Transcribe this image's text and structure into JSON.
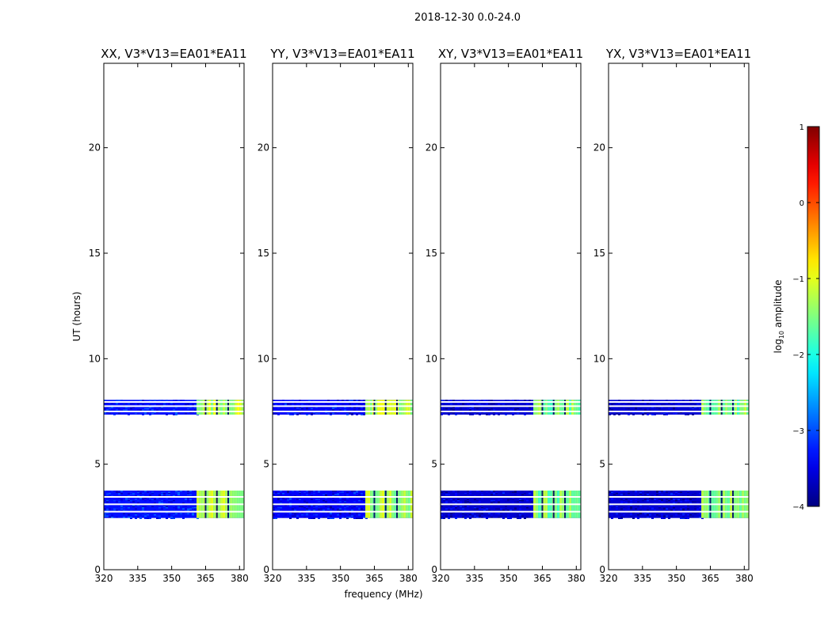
{
  "figure_title": "2018-12-30 0.0-24.0",
  "chart_data": {
    "type": "heatmap",
    "title": "2018-12-30 0.0-24.0",
    "xlabel": "frequency (MHz)",
    "ylabel": "UT (hours)",
    "xlim": [
      320,
      382
    ],
    "ylim": [
      0,
      24
    ],
    "xticks": [
      "320",
      "335",
      "350",
      "365",
      "380"
    ],
    "yticks": [
      "0",
      "5",
      "10",
      "15",
      "20"
    ],
    "panels": [
      {
        "title": "XX, V3*V13=EA01*EA11",
        "bands": [
          {
            "t0": 7.35,
            "t1": 8.05,
            "base": -3.3,
            "hot": -1.2
          },
          {
            "t0": 2.45,
            "t1": 3.75,
            "base": -3.3,
            "hot": -1.3
          }
        ]
      },
      {
        "title": "YY, V3*V13=EA01*EA11",
        "bands": [
          {
            "t0": 7.35,
            "t1": 8.05,
            "base": -3.4,
            "hot": -1.2
          },
          {
            "t0": 2.45,
            "t1": 3.75,
            "base": -3.4,
            "hot": -1.3
          }
        ]
      },
      {
        "title": "XY, V3*V13=EA01*EA11",
        "bands": [
          {
            "t0": 7.35,
            "t1": 8.05,
            "base": -3.6,
            "hot": -1.5
          },
          {
            "t0": 2.45,
            "t1": 3.75,
            "base": -3.6,
            "hot": -1.5
          }
        ]
      },
      {
        "title": "YX, V3*V13=EA01*EA11",
        "bands": [
          {
            "t0": 7.35,
            "t1": 8.05,
            "base": -3.6,
            "hot": -1.5
          },
          {
            "t0": 2.45,
            "t1": 3.75,
            "base": -3.6,
            "hot": -1.5
          }
        ]
      }
    ],
    "rfi_freq_range_mhz": [
      361,
      381
    ],
    "rfi_channel_gaps_mhz": [
      365,
      370,
      375
    ],
    "flagged_time_rows_hours": [
      7.5,
      7.75,
      7.95,
      2.75,
      3.1,
      3.45
    ],
    "colorbar": {
      "label_main": "log",
      "label_sub": "10",
      "label_rest": " amplitude",
      "range": [
        -4,
        1
      ],
      "ticks": [
        "1",
        "0",
        "−1",
        "−2",
        "−3",
        "−4"
      ]
    }
  }
}
